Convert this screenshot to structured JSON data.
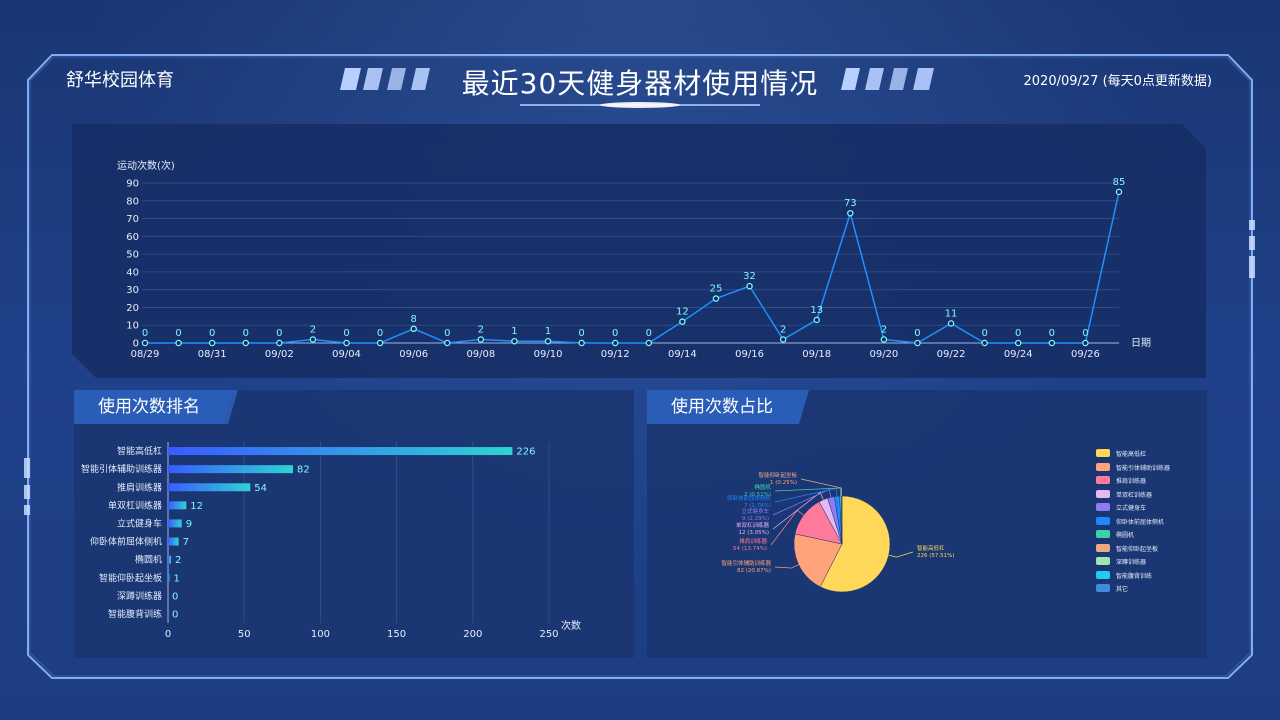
{
  "header": {
    "brand": "舒华校园体育",
    "title": "最近30天健身器材使用情况",
    "date_info": "2020/09/27 (每天0点更新数据)"
  },
  "line_panel": {
    "chart_data": {
      "type": "line",
      "ylabel": "运动次数(次)",
      "xlabel": "日期",
      "ylim": [
        0,
        90
      ],
      "yticks": [
        0,
        10,
        20,
        30,
        40,
        50,
        60,
        70,
        80,
        90
      ],
      "x": [
        "08/29",
        "08/30",
        "08/31",
        "09/01",
        "09/02",
        "09/03",
        "09/04",
        "09/05",
        "09/06",
        "09/07",
        "09/08",
        "09/09",
        "09/10",
        "09/11",
        "09/12",
        "09/13",
        "09/14",
        "09/15",
        "09/16",
        "09/17",
        "09/18",
        "09/19",
        "09/20",
        "09/21",
        "09/22",
        "09/23",
        "09/24",
        "09/25",
        "09/26",
        "09/27"
      ],
      "xtick_labels": [
        "08/29",
        "08/31",
        "09/02",
        "09/04",
        "09/06",
        "09/08",
        "09/10",
        "09/12",
        "09/14",
        "09/16",
        "09/18",
        "09/20",
        "09/22",
        "09/24",
        "09/26"
      ],
      "values": [
        0,
        0,
        0,
        0,
        0,
        2,
        0,
        0,
        8,
        0,
        2,
        1,
        1,
        0,
        0,
        0,
        12,
        25,
        32,
        2,
        13,
        73,
        2,
        0,
        11,
        0,
        0,
        0,
        0,
        85
      ],
      "grid": true,
      "line_color": "#1e90ff",
      "marker_color": "#7ff6ff"
    }
  },
  "rank_panel": {
    "title": "使用次数排名",
    "chart_data": {
      "type": "bar",
      "orientation": "horizontal",
      "categories": [
        "智能高低杠",
        "智能引体辅助训练器",
        "推肩训练器",
        "单双杠训练器",
        "立式健身车",
        "仰卧体前屈体侧机",
        "椭圆机",
        "智能仰卧起坐板",
        "深蹲训练器",
        "智能腹背训练"
      ],
      "values": [
        226,
        82,
        54,
        12,
        9,
        7,
        2,
        1,
        0,
        0
      ],
      "xlim": [
        0,
        250
      ],
      "xticks": [
        0,
        50,
        100,
        150,
        200,
        250
      ],
      "xlabel": "次数",
      "grid": true,
      "bar_gradient": [
        "#3a5bff",
        "#2ed3d3"
      ]
    }
  },
  "pie_panel": {
    "title": "使用次数占比",
    "chart_data": {
      "type": "pie",
      "slices": [
        {
          "name": "智能高低杠",
          "value": 226,
          "label": "智能高低杠",
          "pct_label": "226 (57.51%)",
          "color": "#ffd85a"
        },
        {
          "name": "智能引体辅助训练器",
          "value": 82,
          "label": "智能引体辅助训练器",
          "pct_label": "82 (20.87%)",
          "color": "#ffa47a"
        },
        {
          "name": "推肩训练器",
          "value": 54,
          "label": "推肩训练器",
          "pct_label": "54 (13.74%)",
          "color": "#ff7a9a"
        },
        {
          "name": "单双杠训练器",
          "value": 12,
          "label": "单双杠训练器",
          "pct_label": "12 (3.05%)",
          "color": "#e6b8f5"
        },
        {
          "name": "立式健身车",
          "value": 9,
          "label": "立式健身车",
          "pct_label": "9 (2.29%)",
          "color": "#8f7cf0"
        },
        {
          "name": "仰卧体前屈体侧机",
          "value": 7,
          "label": "仰卧体前屈体侧机",
          "pct_label": "7 (1.78%)",
          "color": "#1e88ff"
        },
        {
          "name": "椭圆机",
          "value": 2,
          "label": "椭圆机",
          "pct_label": "2 (0.51%)",
          "color": "#3fd0a8"
        },
        {
          "name": "智能仰卧起坐板",
          "value": 1,
          "label": "智能仰卧起坐板",
          "pct_label": "1 (0.25%)",
          "color": "#f0a880"
        },
        {
          "name": "深蹲训练器",
          "value": 0,
          "label": "",
          "pct_label": "",
          "color": "#9de6b0"
        },
        {
          "name": "智能腹背训练",
          "value": 0,
          "label": "",
          "pct_label": "",
          "color": "#22ccee"
        },
        {
          "name": "其它",
          "value": 0,
          "label": "",
          "pct_label": "",
          "color": "#3a8fd8"
        }
      ],
      "legend": [
        "智能高低杠",
        "智能引体辅助训练器",
        "推肩训练器",
        "单双杠训练器",
        "立式健身车",
        "仰卧体前屈体侧机",
        "椭圆机",
        "智能仰卧起坐板",
        "深蹲训练器",
        "智能腹背训练",
        "其它"
      ],
      "legend_placement": "right"
    }
  }
}
